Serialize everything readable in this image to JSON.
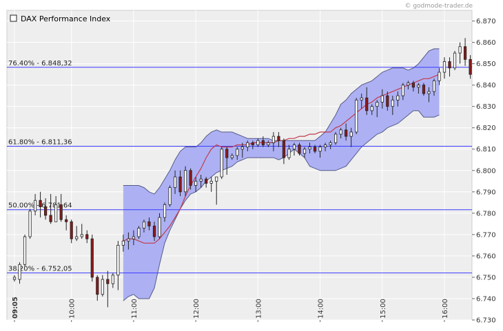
{
  "credit": "© godmode-trader.de",
  "chart_data": {
    "type": "candlestick",
    "title": "DAX Performance Index",
    "ylim": [
      6.73,
      6.875
    ],
    "y_ticks": [
      "6.730",
      "6.740",
      "6.750",
      "6.760",
      "6.770",
      "6.780",
      "6.790",
      "6.800",
      "6.810",
      "6.820",
      "6.830",
      "6.840",
      "6.850",
      "6.860",
      "6.870"
    ],
    "y_tick_values": [
      6.73,
      6.74,
      6.75,
      6.76,
      6.77,
      6.78,
      6.79,
      6.8,
      6.81,
      6.82,
      6.83,
      6.84,
      6.85,
      6.86,
      6.87
    ],
    "x_ticks": [
      "09:05",
      "10:00",
      "11:00",
      "12:00",
      "13:00",
      "14:00",
      "15:00",
      "16:00"
    ],
    "x_tick_minutes": [
      545,
      600,
      660,
      720,
      780,
      840,
      900,
      960
    ],
    "fib_levels": [
      {
        "label": "76.40% - 6.848,32",
        "value": 6.84832
      },
      {
        "label": "61.80% - 6.811,36",
        "value": 6.81136
      },
      {
        "label": "50.00% - 6.781,64",
        "value": 6.78164
      },
      {
        "label": "38.20% - 6.752,05",
        "value": 6.75205
      }
    ],
    "candle_interval_minutes": 5,
    "candles_start_minutes": 545,
    "candles": [
      [
        6.749,
        6.751,
        6.748,
        6.75
      ],
      [
        6.749,
        6.757,
        6.747,
        6.756
      ],
      [
        6.756,
        6.77,
        6.755,
        6.769
      ],
      [
        6.769,
        6.782,
        6.768,
        6.781
      ],
      [
        6.781,
        6.789,
        6.779,
        6.786
      ],
      [
        6.786,
        6.79,
        6.778,
        6.783
      ],
      [
        6.783,
        6.787,
        6.777,
        6.779
      ],
      [
        6.779,
        6.789,
        6.775,
        6.776
      ],
      [
        6.776,
        6.788,
        6.776,
        6.784
      ],
      [
        6.784,
        6.789,
        6.776,
        6.777
      ],
      [
        6.777,
        6.779,
        6.772,
        6.776
      ],
      [
        6.776,
        6.777,
        6.766,
        6.768
      ],
      [
        6.768,
        6.774,
        6.767,
        6.769
      ],
      [
        6.769,
        6.775,
        6.768,
        6.77
      ],
      [
        6.77,
        6.772,
        6.766,
        6.768
      ],
      [
        6.768,
        6.77,
        6.748,
        6.75
      ],
      [
        6.75,
        6.751,
        6.739,
        6.742
      ],
      [
        6.742,
        6.751,
        6.741,
        6.749
      ],
      [
        6.749,
        6.753,
        6.736,
        6.747
      ],
      [
        6.747,
        6.752,
        6.745,
        6.751
      ],
      [
        6.751,
        6.767,
        6.744,
        6.765
      ],
      [
        6.765,
        6.77,
        6.762,
        6.767
      ],
      [
        6.767,
        6.771,
        6.763,
        6.768
      ],
      [
        6.768,
        6.772,
        6.765,
        6.769
      ],
      [
        6.769,
        6.774,
        6.768,
        6.773
      ],
      [
        6.773,
        6.777,
        6.771,
        6.776
      ],
      [
        6.776,
        6.778,
        6.772,
        6.774
      ],
      [
        6.774,
        6.776,
        6.767,
        6.769
      ],
      [
        6.769,
        6.78,
        6.768,
        6.778
      ],
      [
        6.778,
        6.785,
        6.776,
        6.784
      ],
      [
        6.784,
        6.793,
        6.783,
        6.792
      ],
      [
        6.792,
        6.8,
        6.789,
        6.797
      ],
      [
        6.797,
        6.8,
        6.788,
        6.79
      ],
      [
        6.79,
        6.802,
        6.788,
        6.8
      ],
      [
        6.8,
        6.801,
        6.791,
        6.793
      ],
      [
        6.793,
        6.797,
        6.79,
        6.795
      ],
      [
        6.795,
        6.798,
        6.792,
        6.796
      ],
      [
        6.796,
        6.797,
        6.792,
        6.794
      ],
      [
        6.794,
        6.797,
        6.79,
        6.795
      ],
      [
        6.795,
        6.797,
        6.784,
        6.797
      ],
      [
        6.797,
        6.811,
        6.796,
        6.81
      ],
      [
        6.81,
        6.811,
        6.798,
        6.806
      ],
      [
        6.806,
        6.808,
        6.805,
        6.807
      ],
      [
        6.807,
        6.811,
        6.805,
        6.81
      ],
      [
        6.81,
        6.813,
        6.806,
        6.811
      ],
      [
        6.811,
        6.814,
        6.809,
        6.813
      ],
      [
        6.813,
        6.814,
        6.81,
        6.812
      ],
      [
        6.812,
        6.815,
        6.811,
        6.814
      ],
      [
        6.814,
        6.816,
        6.811,
        6.812
      ],
      [
        6.812,
        6.814,
        6.811,
        6.813
      ],
      [
        6.813,
        6.818,
        6.809,
        6.816
      ],
      [
        6.816,
        6.818,
        6.811,
        6.814
      ],
      [
        6.814,
        6.815,
        6.803,
        6.806
      ],
      [
        6.806,
        6.812,
        6.805,
        6.81
      ],
      [
        6.81,
        6.813,
        6.807,
        6.812
      ],
      [
        6.812,
        6.813,
        6.807,
        6.808
      ],
      [
        6.808,
        6.811,
        6.806,
        6.81
      ],
      [
        6.81,
        6.813,
        6.808,
        6.811
      ],
      [
        6.811,
        6.812,
        6.808,
        6.809
      ],
      [
        6.809,
        6.812,
        6.806,
        6.811
      ],
      [
        6.811,
        6.813,
        6.809,
        6.812
      ],
      [
        6.812,
        6.814,
        6.81,
        6.813
      ],
      [
        6.813,
        6.818,
        6.812,
        6.817
      ],
      [
        6.817,
        6.82,
        6.815,
        6.819
      ],
      [
        6.819,
        6.822,
        6.814,
        6.816
      ],
      [
        6.816,
        6.82,
        6.811,
        6.818
      ],
      [
        6.818,
        6.834,
        6.817,
        6.833
      ],
      [
        6.833,
        6.836,
        6.829,
        6.834
      ],
      [
        6.834,
        6.839,
        6.826,
        6.828
      ],
      [
        6.828,
        6.831,
        6.826,
        6.83
      ],
      [
        6.83,
        6.833,
        6.825,
        6.832
      ],
      [
        6.832,
        6.838,
        6.829,
        6.835
      ],
      [
        6.835,
        6.837,
        6.828,
        6.83
      ],
      [
        6.83,
        6.835,
        6.826,
        6.833
      ],
      [
        6.833,
        6.837,
        6.83,
        6.835
      ],
      [
        6.835,
        6.841,
        6.833,
        6.84
      ],
      [
        6.84,
        6.842,
        6.838,
        6.841
      ],
      [
        6.841,
        6.842,
        6.837,
        6.839
      ],
      [
        6.839,
        6.841,
        6.836,
        6.84
      ],
      [
        6.84,
        6.841,
        6.835,
        6.836
      ],
      [
        6.836,
        6.839,
        6.832,
        6.837
      ],
      [
        6.837,
        6.843,
        6.835,
        6.842
      ],
      [
        6.842,
        6.848,
        6.84,
        6.846
      ],
      [
        6.846,
        6.853,
        6.843,
        6.851
      ],
      [
        6.851,
        6.853,
        6.844,
        6.848
      ],
      [
        6.848,
        6.856,
        6.847,
        6.855
      ],
      [
        6.855,
        6.86,
        6.85,
        6.858
      ],
      [
        6.858,
        6.862,
        6.849,
        6.852
      ],
      [
        6.852,
        6.854,
        6.843,
        6.845
      ]
    ],
    "bollinger_start_minutes": 650,
    "ma_start_minutes": 650,
    "bollinger_upper": [
      6.793,
      6.793,
      6.793,
      6.793,
      6.792,
      6.79,
      6.789,
      6.792,
      6.796,
      6.8,
      6.805,
      6.809,
      6.811,
      6.811,
      6.811,
      6.813,
      6.816,
      6.818,
      6.819,
      6.818,
      6.818,
      6.818,
      6.817,
      6.816,
      6.815,
      6.815,
      6.815,
      6.815,
      6.815,
      6.814,
      6.814,
      6.814,
      6.814,
      6.814,
      6.814,
      6.814,
      6.814,
      6.814,
      6.816,
      6.818,
      6.822,
      6.826,
      6.831,
      6.833,
      6.836,
      6.838,
      6.84,
      6.841,
      6.842,
      6.844,
      6.846,
      6.847,
      6.848,
      6.848,
      6.848,
      6.847,
      6.848,
      6.85,
      6.853,
      6.856,
      6.857,
      6.857
    ],
    "bollinger_lower": [
      6.739,
      6.741,
      6.742,
      6.74,
      6.74,
      6.74,
      6.745,
      6.756,
      6.766,
      6.772,
      6.777,
      6.782,
      6.786,
      6.789,
      6.79,
      6.792,
      6.795,
      6.797,
      6.799,
      6.8,
      6.801,
      6.802,
      6.804,
      6.805,
      6.806,
      6.806,
      6.806,
      6.806,
      6.806,
      6.806,
      6.805,
      6.806,
      6.808,
      6.81,
      6.808,
      6.806,
      6.802,
      6.801,
      6.8,
      6.8,
      6.8,
      6.8,
      6.801,
      6.802,
      6.805,
      6.808,
      6.811,
      6.813,
      6.815,
      6.817,
      6.818,
      6.82,
      6.821,
      6.822,
      6.824,
      6.826,
      6.828,
      6.828,
      6.825,
      6.825,
      6.825,
      6.826
    ],
    "moving_average": [
      6.767,
      6.768,
      6.768,
      6.767,
      6.766,
      6.766,
      6.766,
      6.768,
      6.771,
      6.774,
      6.778,
      6.782,
      6.788,
      6.793,
      6.797,
      6.801,
      6.806,
      6.81,
      6.812,
      6.811,
      6.811,
      6.811,
      6.812,
      6.812,
      6.812,
      6.813,
      6.813,
      6.813,
      6.813,
      6.813,
      6.814,
      6.814,
      6.815,
      6.815,
      6.816,
      6.816,
      6.817,
      6.817,
      6.818,
      6.818,
      6.818,
      6.82,
      6.821,
      6.823,
      6.825,
      6.827,
      6.829,
      6.831,
      6.832,
      6.834,
      6.835,
      6.836,
      6.837,
      6.838,
      6.839,
      6.84,
      6.841,
      6.842,
      6.843,
      6.843,
      6.844,
      6.845
    ],
    "colors": {
      "up_body": "#ffffff",
      "down_body": "#8b1a1a",
      "candle_outline": "#222222",
      "band_fill": "#a9adf2",
      "band_stroke": "#555a88",
      "ma_line": "#c23a4b",
      "fib_line": "#3a3aff",
      "plot_bg": "#eeeeee",
      "grid": "#ffffff"
    }
  }
}
